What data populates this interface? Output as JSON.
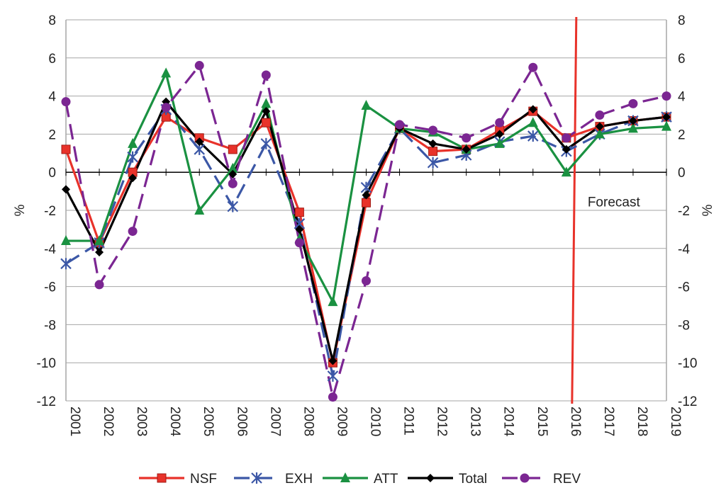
{
  "chart_data": {
    "type": "line",
    "title": "",
    "xlabel": "",
    "ylabel": "%",
    "y2label": "%",
    "ylim": [
      -12,
      8
    ],
    "yticks": [
      8,
      6,
      4,
      2,
      0,
      -2,
      -4,
      -6,
      -8,
      -10,
      -12
    ],
    "y2ticks": [
      8,
      6,
      4,
      2,
      0,
      -2,
      -4,
      -6,
      -8,
      -10,
      -12
    ],
    "x": [
      "2001",
      "2002",
      "2003",
      "2004",
      "2005",
      "2006",
      "2007",
      "2008",
      "2009",
      "2010",
      "2011",
      "2012",
      "2013",
      "2014",
      "2015",
      "2016",
      "2017",
      "2018",
      "2019"
    ],
    "grid": "horizontal",
    "legend_position": "bottom",
    "annotation": {
      "text": "Forecast",
      "forecast_start_after": "2016"
    },
    "colors": {
      "forecast_line": "#e8322a",
      "grid": "#a6a6a6",
      "axis": "#000000"
    },
    "series": [
      {
        "name": "NSF",
        "color": "#e8322a",
        "marker": "square",
        "dash": "solid",
        "values": [
          1.2,
          -3.7,
          0.0,
          2.9,
          1.8,
          1.2,
          2.6,
          -2.1,
          -10.0,
          -1.6,
          2.3,
          1.1,
          1.2,
          2.2,
          3.2,
          1.8,
          2.4,
          2.7,
          2.9
        ]
      },
      {
        "name": "EXH",
        "color": "#3b57a6",
        "marker": "asterisk",
        "dash": "dashed",
        "values": [
          -4.8,
          -3.7,
          0.8,
          3.3,
          1.2,
          -1.8,
          1.5,
          -2.7,
          -10.7,
          -0.8,
          2.3,
          0.5,
          0.9,
          1.6,
          1.9,
          1.1,
          2.0,
          2.7,
          2.9
        ]
      },
      {
        "name": "ATT",
        "color": "#1a9141",
        "marker": "triangle",
        "dash": "solid",
        "values": [
          -3.6,
          -3.6,
          1.5,
          5.2,
          -2.0,
          0.2,
          3.6,
          -3.5,
          -6.8,
          3.5,
          2.3,
          2.1,
          1.2,
          1.5,
          2.6,
          0.0,
          2.0,
          2.3,
          2.4
        ]
      },
      {
        "name": "Total",
        "color": "#000000",
        "marker": "diamond",
        "dash": "solid",
        "values": [
          -0.9,
          -4.2,
          -0.3,
          3.7,
          1.6,
          -0.1,
          3.2,
          -3.0,
          -9.9,
          -1.2,
          2.3,
          1.5,
          1.2,
          2.0,
          3.3,
          1.2,
          2.4,
          2.7,
          2.9
        ]
      },
      {
        "name": "REV",
        "color": "#7b2692",
        "marker": "circle",
        "dash": "dashed",
        "values": [
          3.7,
          -5.9,
          -3.1,
          3.4,
          5.6,
          -0.6,
          5.1,
          -3.7,
          -11.8,
          -5.7,
          2.5,
          2.2,
          1.8,
          2.6,
          5.5,
          1.8,
          3.0,
          3.6,
          4.0
        ]
      }
    ]
  }
}
